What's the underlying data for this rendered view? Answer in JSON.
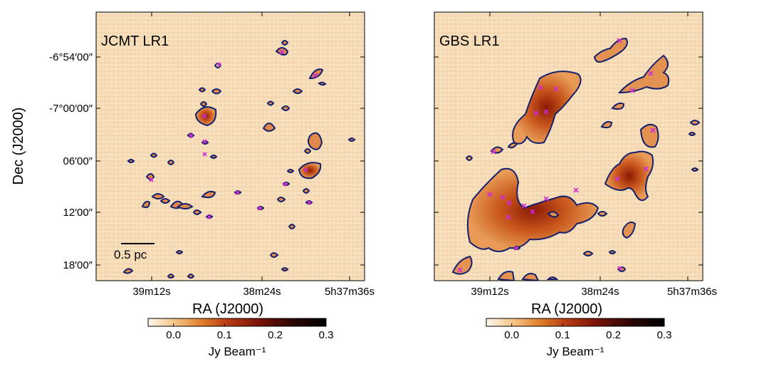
{
  "figure": {
    "ylabel": "Dec (J2000)",
    "panels": [
      {
        "label": "JCMT LR1",
        "xlabel": "RA (J2000)",
        "x_ticks": [
          "39m12s",
          "38m24s",
          "5h37m36s"
        ],
        "y_ticks": [
          "-6°54′00″",
          "-7°00′00″",
          "06′00″",
          "12′00″",
          "18′00″"
        ],
        "scalebar": "0.5 pc"
      },
      {
        "label": "GBS LR1",
        "xlabel": "RA (J2000)",
        "x_ticks": [
          "39m12s",
          "38m24s",
          "5h37m36s"
        ]
      }
    ],
    "colorbar": {
      "label": "Jy Beam⁻¹",
      "ticks": [
        "0.0",
        "0.1",
        "0.2",
        "0.3"
      ],
      "range": [
        -0.05,
        0.3
      ],
      "colors": [
        "#fff8ee",
        "#f7c98c",
        "#e07f2a",
        "#b83a12",
        "#7a1208",
        "#2a0502",
        "#000000"
      ]
    },
    "colors": {
      "background": "#f6dcb6",
      "contour": "#14206e",
      "marker": "#d22ad6"
    }
  }
}
